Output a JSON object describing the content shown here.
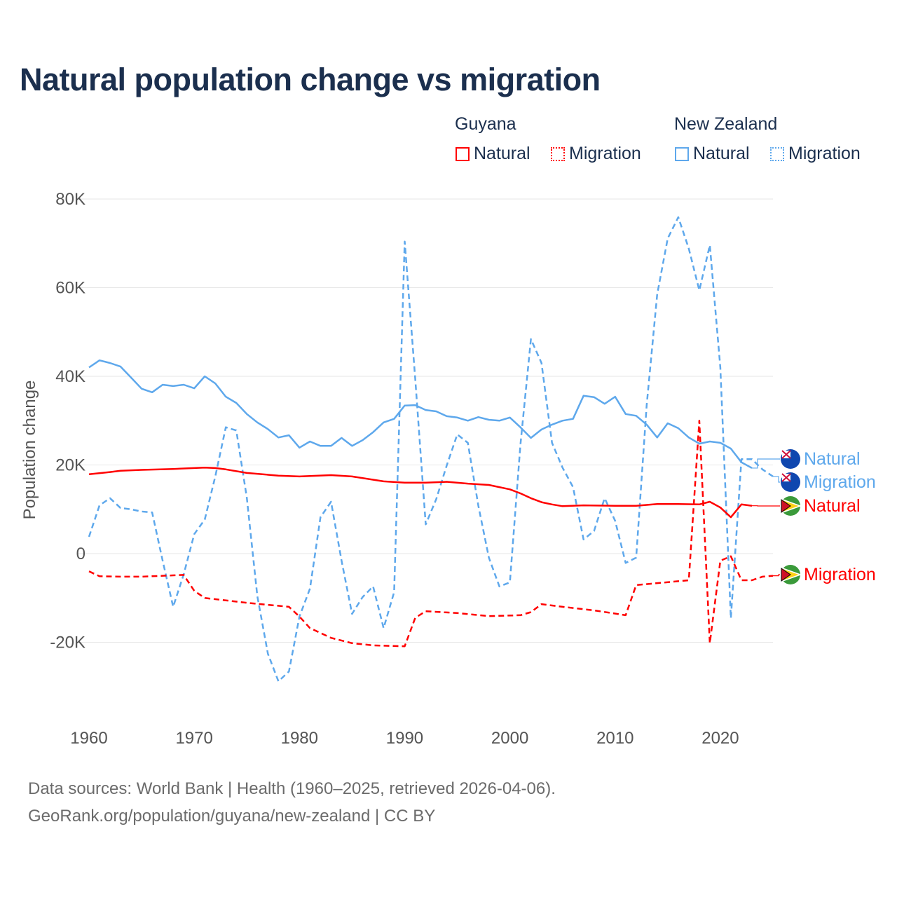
{
  "title": "Natural population change vs migration",
  "legend": {
    "groups": [
      {
        "name": "Guyana",
        "color": "#ff0000",
        "items": [
          "Natural",
          "Migration"
        ]
      },
      {
        "name": "New Zealand",
        "color": "#5ea8ec",
        "items": [
          "Natural",
          "Migration"
        ]
      }
    ]
  },
  "footer": {
    "line1": "Data sources: World Bank | Health (1960–2025, retrieved 2026-04-06).",
    "line2": "GeoRank.org/population/guyana/new-zealand | CC BY"
  },
  "chart_data": {
    "type": "line",
    "title": "Natural population change vs migration",
    "xlabel": "",
    "ylabel": "Population change",
    "xlim": [
      1960,
      2025
    ],
    "ylim": [
      -30000,
      80000
    ],
    "x_ticks": [
      1960,
      1970,
      1980,
      1990,
      2000,
      2010,
      2020
    ],
    "x_tick_labels": [
      "1960",
      "1970",
      "1980",
      "1990",
      "2000",
      "2010",
      "2020"
    ],
    "y_ticks": [
      -20000,
      0,
      20000,
      40000,
      60000,
      80000
    ],
    "y_tick_labels": [
      "-20K",
      "0",
      "20K",
      "40K",
      "60K",
      "80K"
    ],
    "grid": true,
    "legend_position": "top-right",
    "series": [
      {
        "name": "New Zealand Natural",
        "country": "New Zealand",
        "kind": "Natural",
        "end_label": "Natural",
        "color": "#5ea8ec",
        "dash": false,
        "x": [
          1960,
          1961,
          1962,
          1963,
          1964,
          1965,
          1966,
          1967,
          1968,
          1969,
          1970,
          1971,
          1972,
          1973,
          1974,
          1975,
          1976,
          1977,
          1978,
          1979,
          1980,
          1981,
          1982,
          1983,
          1984,
          1985,
          1986,
          1987,
          1988,
          1989,
          1990,
          1991,
          1992,
          1993,
          1994,
          1995,
          1996,
          1997,
          1998,
          1999,
          2000,
          2001,
          2002,
          2003,
          2004,
          2005,
          2006,
          2007,
          2008,
          2009,
          2010,
          2011,
          2012,
          2013,
          2014,
          2015,
          2016,
          2017,
          2018,
          2019,
          2020,
          2021,
          2022,
          2023
        ],
        "y": [
          42000,
          43600,
          43000,
          42200,
          39700,
          37200,
          36400,
          38100,
          37800,
          38100,
          37300,
          40000,
          38400,
          35400,
          34000,
          31500,
          29600,
          28100,
          26200,
          26700,
          23900,
          25300,
          24300,
          24300,
          26100,
          24300,
          25600,
          27400,
          29600,
          30400,
          33400,
          33500,
          32400,
          32100,
          31000,
          30700,
          30000,
          30800,
          30200,
          30000,
          30700,
          28500,
          26100,
          28000,
          29100,
          30000,
          30400,
          35600,
          35300,
          33800,
          35400,
          31500,
          31100,
          29100,
          26200,
          29400,
          28300,
          26200,
          24800,
          25300,
          25000,
          23700,
          20600,
          19300
        ]
      },
      {
        "name": "New Zealand Migration",
        "country": "New Zealand",
        "kind": "Migration",
        "end_label": "Migration",
        "color": "#5ea8ec",
        "dash": true,
        "x": [
          1960,
          1961,
          1962,
          1963,
          1964,
          1965,
          1966,
          1967,
          1968,
          1969,
          1970,
          1971,
          1972,
          1973,
          1974,
          1975,
          1976,
          1977,
          1978,
          1979,
          1980,
          1981,
          1982,
          1983,
          1984,
          1985,
          1986,
          1987,
          1988,
          1989,
          1990,
          1991,
          1992,
          1993,
          1994,
          1995,
          1996,
          1997,
          1998,
          1999,
          2000,
          2001,
          2002,
          2003,
          2004,
          2005,
          2006,
          2007,
          2008,
          2009,
          2010,
          2011,
          2012,
          2013,
          2014,
          2015,
          2016,
          2017,
          2018,
          2019,
          2020,
          2021,
          2022,
          2023,
          2024,
          2025
        ],
        "y": [
          3800,
          10900,
          12500,
          10300,
          10000,
          9500,
          9300,
          -1600,
          -12000,
          -4700,
          4400,
          7700,
          17400,
          28500,
          27800,
          12600,
          -9600,
          -22600,
          -28800,
          -26600,
          -14200,
          -7900,
          8200,
          11700,
          -1600,
          -13600,
          -9800,
          -7400,
          -16800,
          -8700,
          70400,
          39500,
          6600,
          12300,
          19900,
          26900,
          25000,
          10800,
          -900,
          -7400,
          -6500,
          24500,
          48400,
          43000,
          25000,
          19400,
          15000,
          3200,
          5100,
          12500,
          7400,
          -2100,
          -900,
          33500,
          58500,
          71100,
          75900,
          68800,
          59400,
          69600,
          42000,
          -14600,
          21300,
          21300,
          19000,
          17400
        ]
      },
      {
        "name": "Guyana Natural",
        "country": "Guyana",
        "kind": "Natural",
        "end_label": "Natural",
        "color": "#ff0000",
        "dash": false,
        "x": [
          1960,
          1962,
          1963,
          1965,
          1968,
          1970,
          1971,
          1972,
          1973,
          1975,
          1978,
          1980,
          1983,
          1985,
          1988,
          1990,
          1992,
          1994,
          1996,
          1998,
          2000,
          2001,
          2002,
          2003,
          2004,
          2005,
          2007,
          2010,
          2012,
          2014,
          2016,
          2018,
          2019,
          2020,
          2021,
          2022,
          2023
        ],
        "y": [
          17900,
          18400,
          18700,
          18900,
          19100,
          19300,
          19400,
          19300,
          19000,
          18200,
          17600,
          17400,
          17700,
          17400,
          16300,
          16000,
          16000,
          16200,
          15800,
          15500,
          14500,
          13600,
          12500,
          11600,
          11100,
          10700,
          10900,
          10800,
          10800,
          11200,
          11200,
          11100,
          11700,
          10400,
          8200,
          11100,
          10800
        ]
      },
      {
        "name": "Guyana Migration",
        "country": "Guyana",
        "kind": "Migration",
        "end_label": "Migration",
        "color": "#ff0000",
        "dash": true,
        "x": [
          1960,
          1961,
          1963,
          1965,
          1968,
          1969,
          1970,
          1971,
          1975,
          1979,
          1980,
          1981,
          1983,
          1985,
          1987,
          1990,
          1991,
          1992,
          1995,
          1998,
          2001,
          2002,
          2003,
          2005,
          2008,
          2011,
          2012,
          2017,
          2018,
          2019,
          2020,
          2021,
          2022,
          2023,
          2024,
          2025
        ],
        "y": [
          -4000,
          -5100,
          -5200,
          -5200,
          -4900,
          -4800,
          -8400,
          -10000,
          -11100,
          -12000,
          -14200,
          -16800,
          -19000,
          -20200,
          -20700,
          -20900,
          -14500,
          -13000,
          -13400,
          -14100,
          -13900,
          -13200,
          -11400,
          -12000,
          -12800,
          -13900,
          -7100,
          -6000,
          30000,
          -20200,
          -1600,
          -600,
          -6000,
          -6000,
          -5200,
          -5000
        ]
      }
    ]
  }
}
